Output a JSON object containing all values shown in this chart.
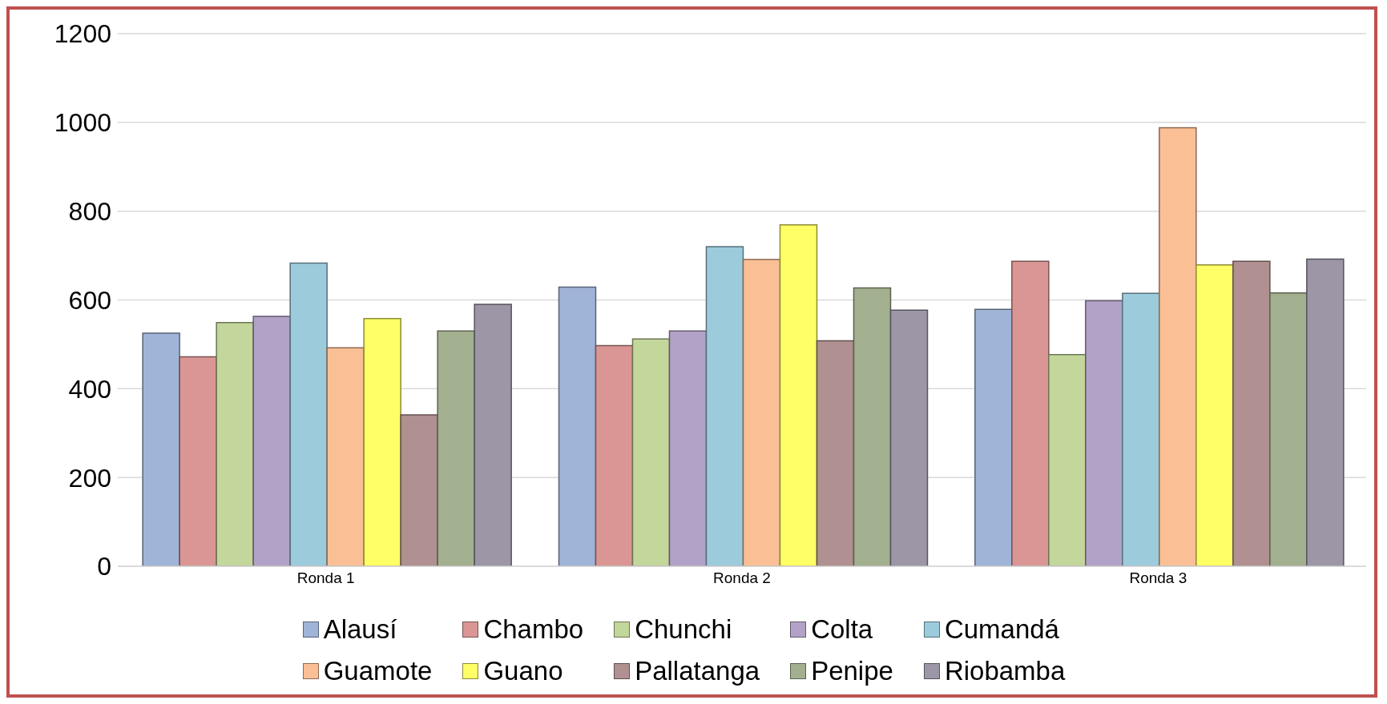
{
  "chart_data": {
    "type": "bar",
    "categories": [
      "Ronda 1",
      "Ronda 2",
      "Ronda 3"
    ],
    "series": [
      {
        "name": "Alausí",
        "color": "#a0b4d8",
        "values": [
          525,
          629,
          579
        ]
      },
      {
        "name": "Chambo",
        "color": "#d99694",
        "values": [
          472,
          497,
          687
        ]
      },
      {
        "name": "Chunchi",
        "color": "#c3d69b",
        "values": [
          549,
          512,
          477
        ]
      },
      {
        "name": "Colta",
        "color": "#b3a2c7",
        "values": [
          563,
          530,
          598
        ]
      },
      {
        "name": "Cumandá",
        "color": "#9ccbdc",
        "values": [
          683,
          720,
          615
        ]
      },
      {
        "name": "Guamote",
        "color": "#fbbf95",
        "values": [
          492,
          691,
          988
        ]
      },
      {
        "name": "Guano",
        "color": "#ffff66",
        "values": [
          558,
          769,
          679
        ]
      },
      {
        "name": "Pallatanga",
        "color": "#b09090",
        "values": [
          341,
          508,
          687
        ]
      },
      {
        "name": "Penipe",
        "color": "#a3b08f",
        "values": [
          530,
          627,
          616
        ]
      },
      {
        "name": "Riobamba",
        "color": "#9c96a6",
        "values": [
          590,
          577,
          692
        ]
      }
    ],
    "ylim": [
      0,
      1200
    ],
    "yticks": [
      0,
      200,
      400,
      600,
      800,
      1000,
      1200
    ],
    "grid": "y",
    "legend": "bottom"
  }
}
